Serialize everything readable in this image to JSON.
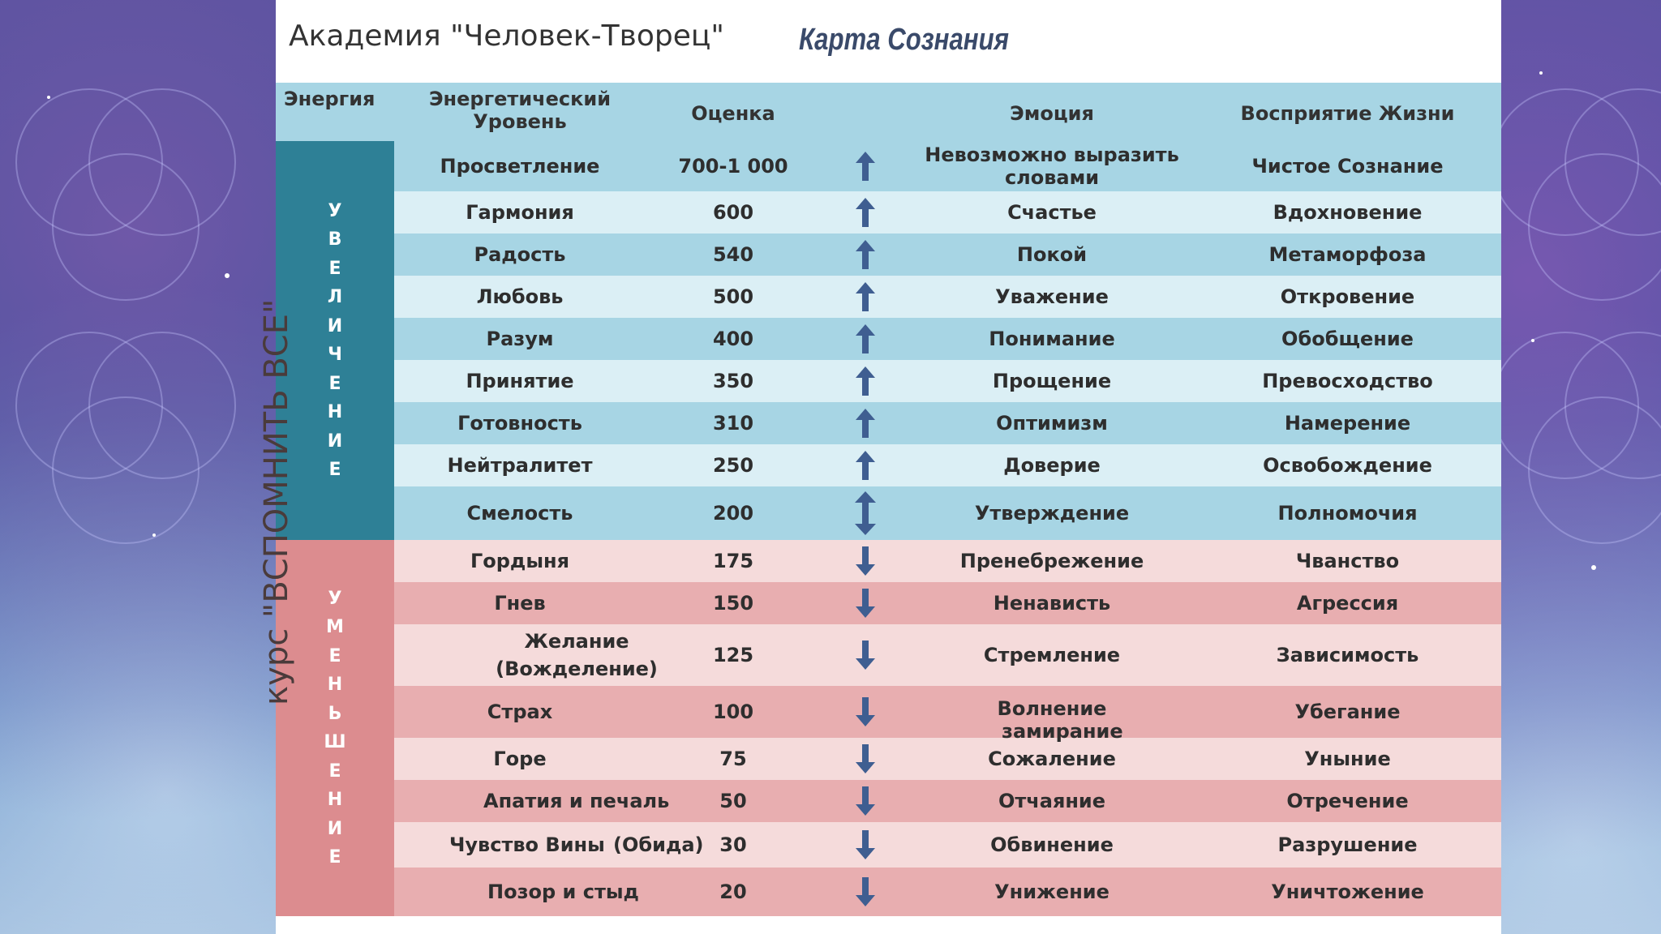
{
  "header": {
    "academy": "Академия \"Человек-Творец\"",
    "title": "Карта Сознания",
    "course": "курс \"ВСПОМНИТЬ ВСЕ\""
  },
  "columns": {
    "energy": "Энергия",
    "level_line1": "Энергетический",
    "level_line2": "Уровень",
    "score": "Оценка",
    "emotion": "Эмоция",
    "life": "Восприятие Жизни"
  },
  "groups": {
    "increase_letters": [
      "У",
      "В",
      "Е",
      "Л",
      "И",
      "Ч",
      "Е",
      "Н",
      "И",
      "Е"
    ],
    "decrease_letters": [
      "У",
      "М",
      "Е",
      "Н",
      "Ь",
      "Ш",
      "Е",
      "Н",
      "И",
      "Е"
    ]
  },
  "colors": {
    "increase_side": "#2e8096",
    "decrease_side": "#dc8c8f",
    "blue_row_a": "#a7d5e4",
    "blue_row_b": "#dbeff5",
    "pink_row_a": "#f5dbdb",
    "pink_row_b": "#e8aeb0",
    "arrow": "#3f5e91"
  },
  "rows": [
    {
      "level": "Просветление",
      "score": "700-1 000",
      "dir": "up",
      "emotion": "Невозможно выразить словами",
      "life": "Чистое Сознание"
    },
    {
      "level": "Гармония",
      "score": "600",
      "dir": "up",
      "emotion": "Счастье",
      "life": "Вдохновение"
    },
    {
      "level": "Радость",
      "score": "540",
      "dir": "up",
      "emotion": "Покой",
      "life": "Метаморфоза"
    },
    {
      "level": "Любовь",
      "score": "500",
      "dir": "up",
      "emotion": "Уважение",
      "life": "Откровение"
    },
    {
      "level": "Разум",
      "score": "400",
      "dir": "up",
      "emotion": "Понимание",
      "life": "Обобщение"
    },
    {
      "level": "Принятие",
      "score": "350",
      "dir": "up",
      "emotion": "Прощение",
      "life": "Превосходство"
    },
    {
      "level": "Готовность",
      "score": "310",
      "dir": "up",
      "emotion": "Оптимизм",
      "life": "Намерение"
    },
    {
      "level": "Нейтралитет",
      "score": "250",
      "dir": "up",
      "emotion": "Доверие",
      "life": "Освобождение"
    },
    {
      "level": "Смелость",
      "score": "200",
      "dir": "both",
      "emotion": "Утверждение",
      "life": "Полномочия"
    },
    {
      "level": "Гордыня",
      "score": "175",
      "dir": "down",
      "emotion": "Пренебрежение",
      "life": "Чванство"
    },
    {
      "level": "Гнев",
      "score": "150",
      "dir": "down",
      "emotion": "Ненависть",
      "life": "Агрессия"
    },
    {
      "level": "Желание (Вожделение)",
      "score": "125",
      "dir": "down",
      "emotion": "Стремление",
      "life": "Зависимость"
    },
    {
      "level": "Страх",
      "score": "100",
      "dir": "down",
      "emotion": "Волнение",
      "life": "Убегание"
    },
    {
      "level": "Горе",
      "score": "75",
      "dir": "down",
      "emotion": "Сожаление",
      "life": "Уныние"
    },
    {
      "level": "Апатия  и печаль",
      "score": "50",
      "dir": "down",
      "emotion": "Отчаяние",
      "life": "Отречение"
    },
    {
      "level": "Чувство Вины",
      "score": "30",
      "dir": "down",
      "emotion": "Обвинение",
      "life": "Разрушение"
    },
    {
      "level": "Позор и стыд",
      "score": "20",
      "dir": "down",
      "emotion": "Унижение",
      "life": "Уничтожение"
    }
  ],
  "extra_notes": {
    "fear_emotion_extra": "замирание",
    "guilt_level_extra": "(Обида)"
  }
}
